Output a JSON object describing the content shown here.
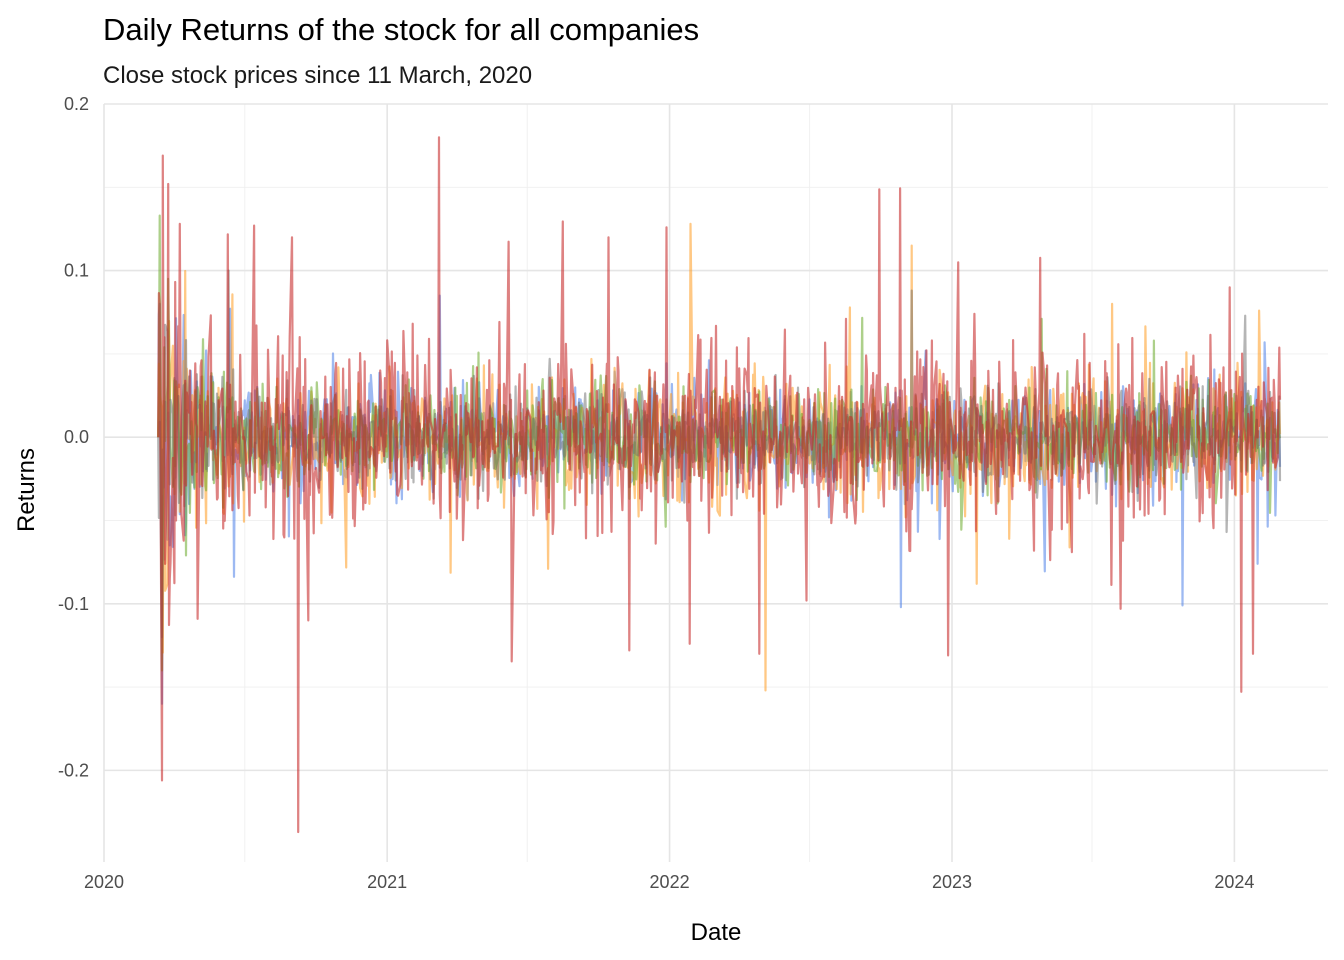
{
  "chart_data": {
    "type": "line",
    "title": "Daily Returns of the stock for all companies",
    "subtitle": "Close stock prices since 11 March, 2020",
    "xlabel": "Date",
    "ylabel": "Returns",
    "x_range": [
      "2020-01-01",
      "2024-05-01"
    ],
    "ylim": [
      -0.255,
      0.2
    ],
    "x_ticks": [
      {
        "label": "2020",
        "date": "2020-01-01"
      },
      {
        "label": "2021",
        "date": "2021-01-01"
      },
      {
        "label": "2022",
        "date": "2022-01-01"
      },
      {
        "label": "2023",
        "date": "2023-01-01"
      },
      {
        "label": "2024",
        "date": "2024-01-01"
      }
    ],
    "x_minor_ticks": [
      "2020-07-01",
      "2021-07-01",
      "2022-07-01",
      "2023-07-01"
    ],
    "y_ticks": [
      {
        "label": "0.2",
        "value": 0.2
      },
      {
        "label": "0.1",
        "value": 0.1
      },
      {
        "label": "0.0",
        "value": 0.0
      },
      {
        "label": "-0.1",
        "value": -0.1
      },
      {
        "label": "-0.2",
        "value": -0.2
      }
    ],
    "y_minor_ticks": [
      0.15,
      0.05,
      -0.05,
      -0.15
    ],
    "grid": true,
    "legend": "none",
    "date_range": [
      "2020-03-11",
      "2024-02-29"
    ],
    "series": [
      {
        "color": "#4d7fe8",
        "opacity": 0.55,
        "seed": 11,
        "volatility": 0.016,
        "features": [
          {
            "date": "2020-03-16",
            "value": -0.16
          },
          {
            "date": "2020-03-13",
            "value": 0.08
          },
          {
            "date": "2021-03-10",
            "value": 0.085
          },
          {
            "date": "2022-10-27",
            "value": -0.102
          },
          {
            "date": "2023-10-26",
            "value": -0.101
          },
          {
            "date": "2024-01-31",
            "value": -0.076
          },
          {
            "date": "2024-02-23",
            "value": -0.047
          }
        ]
      },
      {
        "color": "#ff9a1f",
        "opacity": 0.55,
        "seed": 23,
        "volatility": 0.018,
        "features": [
          {
            "date": "2021-07-28",
            "value": -0.079
          },
          {
            "date": "2022-01-28",
            "value": 0.128
          },
          {
            "date": "2022-05-05",
            "value": -0.152
          },
          {
            "date": "2022-11-10",
            "value": 0.115
          },
          {
            "date": "2023-02-02",
            "value": -0.088
          },
          {
            "date": "2023-07-27",
            "value": 0.08
          },
          {
            "date": "2024-02-02",
            "value": 0.076
          }
        ]
      },
      {
        "color": "#6aaa2a",
        "opacity": 0.55,
        "seed": 37,
        "volatility": 0.015,
        "features": [
          {
            "date": "2020-03-13",
            "value": 0.133
          },
          {
            "date": "2020-03-16",
            "value": -0.14
          },
          {
            "date": "2020-03-24",
            "value": 0.095
          },
          {
            "date": "2023-04-27",
            "value": 0.071
          }
        ]
      },
      {
        "color": "#6b6b6b",
        "opacity": 0.5,
        "seed": 51,
        "volatility": 0.014,
        "features": [
          {
            "date": "2020-03-16",
            "value": -0.12
          },
          {
            "date": "2020-06-10",
            "value": 0.1
          },
          {
            "date": "2022-11-10",
            "value": 0.088
          }
        ]
      },
      {
        "color": "#c62828",
        "opacity": 0.58,
        "seed": 71,
        "volatility": 0.027,
        "features": [
          {
            "date": "2020-03-13",
            "value": 0.08
          },
          {
            "date": "2020-03-16",
            "value": -0.206
          },
          {
            "date": "2020-03-17",
            "value": 0.169
          },
          {
            "date": "2020-03-24",
            "value": 0.152
          },
          {
            "date": "2020-04-08",
            "value": 0.128
          },
          {
            "date": "2020-05-01",
            "value": -0.109
          },
          {
            "date": "2020-07-13",
            "value": 0.127
          },
          {
            "date": "2020-08-31",
            "value": 0.12
          },
          {
            "date": "2020-09-08",
            "value": -0.237
          },
          {
            "date": "2020-09-21",
            "value": -0.11
          },
          {
            "date": "2021-03-09",
            "value": 0.18
          },
          {
            "date": "2021-11-10",
            "value": -0.128
          },
          {
            "date": "2022-01-27",
            "value": -0.124
          },
          {
            "date": "2022-04-27",
            "value": -0.13
          },
          {
            "date": "2022-12-27",
            "value": -0.131
          },
          {
            "date": "2023-01-09",
            "value": 0.105
          },
          {
            "date": "2023-08-07",
            "value": -0.103
          },
          {
            "date": "2024-01-25",
            "value": -0.13
          },
          {
            "date": "2021-10-14",
            "value": 0.12
          },
          {
            "date": "2021-12-28",
            "value": 0.126
          }
        ]
      }
    ]
  }
}
